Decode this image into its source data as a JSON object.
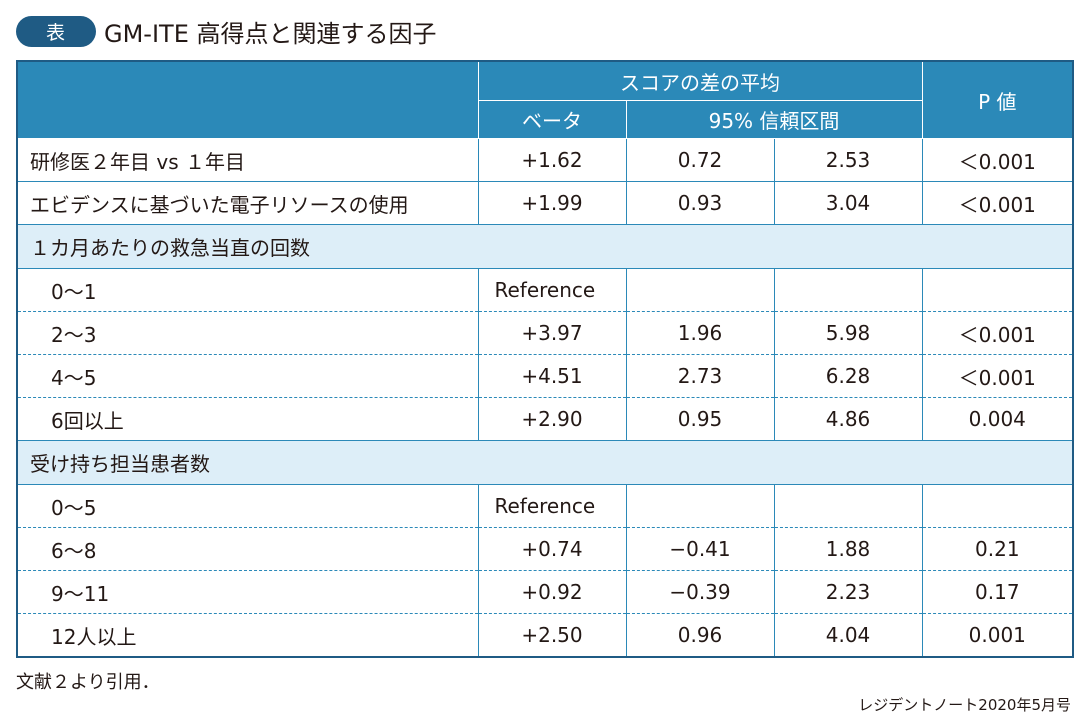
{
  "title": {
    "badge": "表",
    "text": "GM-ITE 高得点と関連する因子"
  },
  "header": {
    "group_label": "スコアの差の平均",
    "beta_label": "ベータ",
    "ci_label": "95% 信頼区間",
    "p_label": "P 値"
  },
  "rows": [
    {
      "label": "研修医２年目 vs １年目",
      "beta": "+1.62",
      "ci_low": "0.72",
      "ci_high": "2.53",
      "p": "＜0.001"
    },
    {
      "label": "エビデンスに基づいた電子リソースの使用",
      "beta": "+1.99",
      "ci_low": "0.93",
      "ci_high": "3.04",
      "p": "＜0.001"
    }
  ],
  "group1": {
    "title": "１カ月あたりの救急当直の回数",
    "rows": [
      {
        "label": "0〜1",
        "beta": "Reference",
        "ci_low": "",
        "ci_high": "",
        "p": ""
      },
      {
        "label": "2〜3",
        "beta": "+3.97",
        "ci_low": "1.96",
        "ci_high": "5.98",
        "p": "＜0.001"
      },
      {
        "label": "4〜5",
        "beta": "+4.51",
        "ci_low": "2.73",
        "ci_high": "6.28",
        "p": "＜0.001"
      },
      {
        "label": "6回以上",
        "beta": "+2.90",
        "ci_low": "0.95",
        "ci_high": "4.86",
        "p": "0.004"
      }
    ]
  },
  "group2": {
    "title": "受け持ち担当患者数",
    "rows": [
      {
        "label": "0〜5",
        "beta": "Reference",
        "ci_low": "",
        "ci_high": "",
        "p": ""
      },
      {
        "label": "6〜8",
        "beta": "+0.74",
        "ci_low": "−0.41",
        "ci_high": "1.88",
        "p": "0.21"
      },
      {
        "label": "9〜11",
        "beta": "+0.92",
        "ci_low": "−0.39",
        "ci_high": "2.23",
        "p": "0.17"
      },
      {
        "label": "12人以上",
        "beta": "+2.50",
        "ci_low": "0.96",
        "ci_high": "4.04",
        "p": "0.001"
      }
    ]
  },
  "footnote": "文献２より引用．",
  "credit": "レジデントノート2020年5月号",
  "colors": {
    "header_bg": "#2b89b8",
    "badge_bg": "#1f5b84",
    "border": "#1f5b84",
    "group_bg": "#ddeef8"
  }
}
